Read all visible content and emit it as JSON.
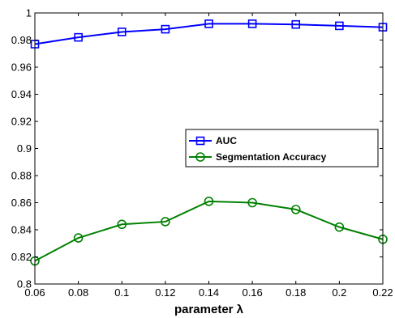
{
  "chart_data": {
    "type": "line",
    "title": "",
    "xlabel": "parameter λ",
    "ylabel": "",
    "x": [
      0.06,
      0.08,
      0.1,
      0.12,
      0.14,
      0.16,
      0.18,
      0.2,
      0.22
    ],
    "xlim": [
      0.06,
      0.22
    ],
    "ylim": [
      0.8,
      1.0
    ],
    "xticks": [
      "0.06",
      "0.08",
      "0.1",
      "0.12",
      "0.14",
      "0.16",
      "0.18",
      "0.2",
      "0.22"
    ],
    "yticks": [
      "0.8",
      "0.82",
      "0.84",
      "0.86",
      "0.88",
      "0.9",
      "0.92",
      "0.94",
      "0.96",
      "0.98",
      "1"
    ],
    "grid": false,
    "legend_position": "center-right",
    "series": [
      {
        "name": "AUC",
        "color": "#0000ff",
        "marker": "square",
        "values": [
          0.977,
          0.982,
          0.986,
          0.988,
          0.992,
          0.992,
          0.9915,
          0.9905,
          0.9895
        ]
      },
      {
        "name": "Segmentation Accuracy",
        "color": "#008000",
        "marker": "circle",
        "values": [
          0.817,
          0.834,
          0.844,
          0.846,
          0.861,
          0.86,
          0.855,
          0.842,
          0.833
        ]
      }
    ]
  }
}
